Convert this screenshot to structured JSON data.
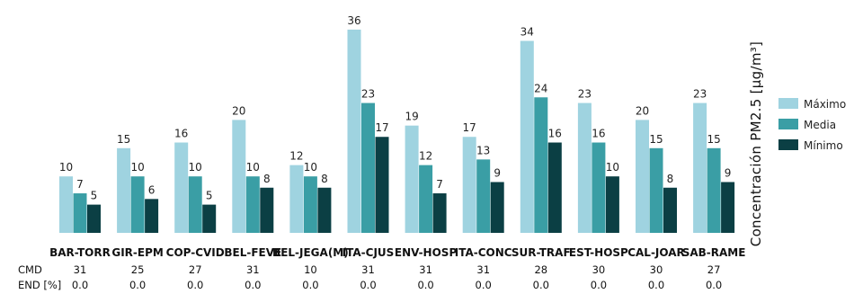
{
  "chart_data": {
    "type": "bar",
    "ylabel": "Concentración PM2.5 [μg/m³]",
    "ylim": [
      0,
      40
    ],
    "grid": false,
    "legend_position": "right",
    "categories": [
      "BAR-TORR",
      "GIR-EPM",
      "COP-CVID",
      "BEL-FEVE",
      "BEL-JEGA(M)",
      "ITA-CJUS",
      "ENV-HOSP",
      "ITA-CONC",
      "SUR-TRAF",
      "EST-HOSP",
      "CAL-JOAR",
      "SAB-RAME"
    ],
    "series": [
      {
        "name": "Máximo",
        "color": "#9fd3e0",
        "values": [
          10,
          15,
          16,
          20,
          12,
          36,
          19,
          17,
          34,
          23,
          20,
          23
        ]
      },
      {
        "name": "Media",
        "color": "#3a9ea5",
        "values": [
          7,
          10,
          10,
          10,
          10,
          23,
          12,
          13,
          24,
          16,
          15,
          15
        ]
      },
      {
        "name": "Mínimo",
        "color": "#0b3f44",
        "values": [
          5,
          6,
          5,
          8,
          8,
          17,
          7,
          9,
          16,
          10,
          8,
          9
        ]
      }
    ],
    "table_rows": [
      {
        "label": "CMD",
        "values": [
          "31",
          "25",
          "27",
          "31",
          "10",
          "31",
          "31",
          "31",
          "28",
          "30",
          "30",
          "27"
        ]
      },
      {
        "label": "END [%]",
        "values": [
          "0.0",
          "0.0",
          "0.0",
          "0.0",
          "0.0",
          "0.0",
          "0.0",
          "0.0",
          "0.0",
          "0.0",
          "0.0",
          "0.0"
        ]
      }
    ]
  }
}
